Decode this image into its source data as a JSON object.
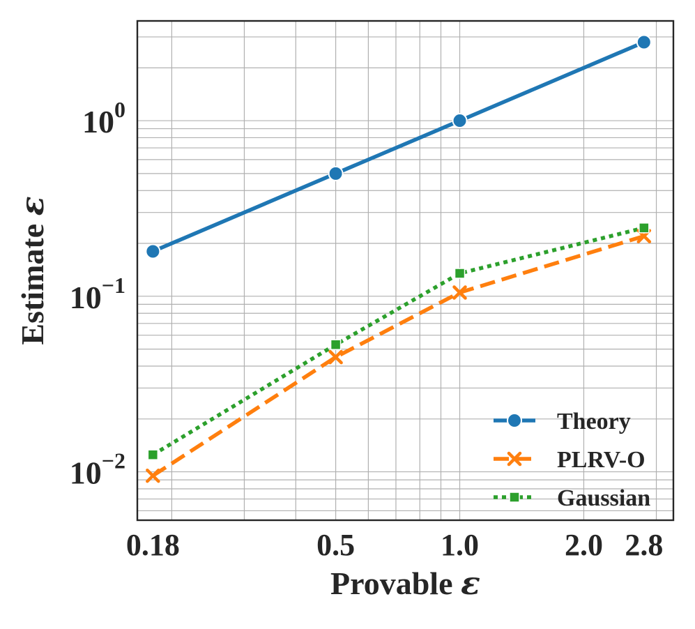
{
  "chart_data": {
    "type": "line",
    "xscale": "log",
    "yscale": "log",
    "xlim": [
      0.165,
      3.3
    ],
    "ylim": [
      0.0053,
      3.7
    ],
    "xticks": [
      0.18,
      0.5,
      1.0,
      2.0,
      2.8
    ],
    "xtick_labels": [
      "0.18",
      "0.5",
      "1.0",
      "2.0",
      "2.8"
    ],
    "yticks": [
      0.01,
      0.1,
      1
    ],
    "ytick_labels": [
      {
        "base": "10",
        "exp": "−2"
      },
      {
        "base": "10",
        "exp": "−1"
      },
      {
        "base": "10",
        "exp": "0"
      }
    ],
    "xlabel": {
      "text": "Provable ",
      "symbol": "ε"
    },
    "ylabel": {
      "text": "Estimate ",
      "symbol": "ε"
    },
    "grid": true,
    "legend_position": "lower-right",
    "x": [
      0.18,
      0.5,
      1.0,
      2.8
    ],
    "series": [
      {
        "name": "Theory",
        "values": [
          0.18,
          0.5,
          1.0,
          2.8
        ],
        "color": "#1f77b4",
        "marker": "circle",
        "linestyle": "solid"
      },
      {
        "name": "PLRV-O",
        "values": [
          0.0095,
          0.045,
          0.105,
          0.22
        ],
        "color": "#ff7f0e",
        "marker": "x",
        "linestyle": "dashed"
      },
      {
        "name": "Gaussian",
        "values": [
          0.0125,
          0.053,
          0.135,
          0.245
        ],
        "color": "#2ca02c",
        "marker": "square",
        "linestyle": "dotted"
      }
    ]
  }
}
